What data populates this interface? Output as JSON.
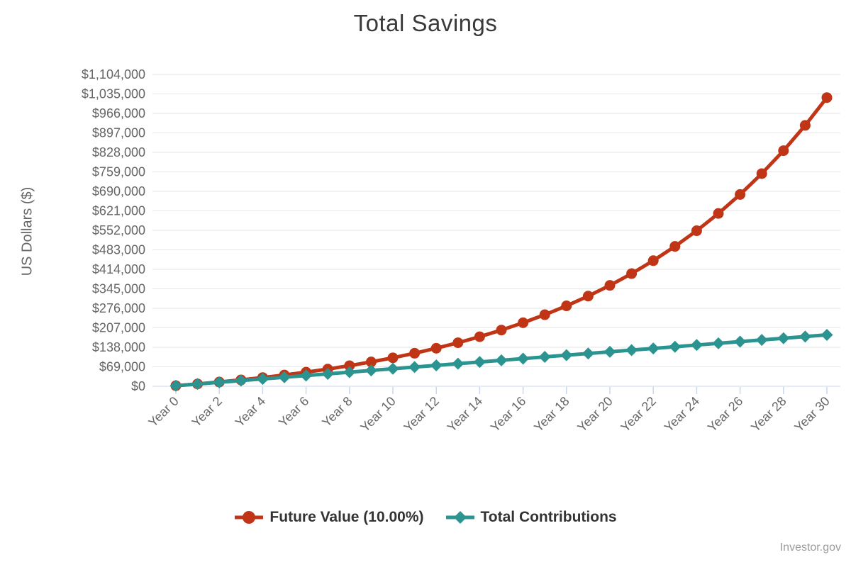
{
  "title": "Total Savings",
  "credits_label": "Investor.gov",
  "colors": {
    "future_value": "#c13517",
    "contributions": "#2b9490",
    "gridline": "#e6e6e6",
    "axis_tick": "#ccd6eb",
    "axis_label": "#666666",
    "title_text": "#3a3a3a",
    "legend_text": "#333333",
    "credits_text": "#9b9b9b"
  },
  "chart_data": {
    "type": "line",
    "title": "Total Savings",
    "xlabel": "",
    "ylabel": "US Dollars ($)",
    "x": [
      0,
      1,
      2,
      3,
      4,
      5,
      6,
      7,
      8,
      9,
      10,
      11,
      12,
      13,
      14,
      15,
      16,
      17,
      18,
      19,
      20,
      21,
      22,
      23,
      24,
      25,
      26,
      27,
      28,
      29,
      30
    ],
    "x_tick_labels": [
      "Year 0",
      "Year 2",
      "Year 4",
      "Year 6",
      "Year 8",
      "Year 10",
      "Year 12",
      "Year 14",
      "Year 16",
      "Year 18",
      "Year 20",
      "Year 22",
      "Year 24",
      "Year 26",
      "Year 28",
      "Year 30"
    ],
    "x_tick_step": 2,
    "ylim": [
      0,
      1104000
    ],
    "y_tick_interval": 69000,
    "y_tick_labels": [
      "$0",
      "$69,000",
      "$138,000",
      "$207,000",
      "$276,000",
      "$345,000",
      "$414,000",
      "$483,000",
      "$552,000",
      "$621,000",
      "$690,000",
      "$759,000",
      "$828,000",
      "$897,000",
      "$966,000",
      "$1,035,000",
      "$1,104,000"
    ],
    "grid": true,
    "legend_position": "bottom",
    "series": [
      {
        "name": "Future Value (10.00%)",
        "color": "#c13517",
        "marker": "circle",
        "values": [
          2000,
          8200,
          15020,
          22522,
          30774,
          39851,
          49837,
          60820,
          72902,
          86193,
          100812,
          116893,
          134582,
          154041,
          175445,
          198989,
          224888,
          253377,
          284715,
          319186,
          357105,
          398815,
          444697,
          495167,
          550683,
          611752,
          678927,
          752820,
          834102,
          923512,
          1021863
        ]
      },
      {
        "name": "Total Contributions",
        "color": "#2b9490",
        "marker": "diamond",
        "values": [
          2000,
          8000,
          14000,
          20000,
          26000,
          32000,
          38000,
          44000,
          50000,
          56000,
          62000,
          68000,
          74000,
          80000,
          86000,
          92000,
          98000,
          104000,
          110000,
          116000,
          122000,
          128000,
          134000,
          140000,
          146000,
          152000,
          158000,
          164000,
          170000,
          176000,
          182000
        ]
      }
    ]
  }
}
